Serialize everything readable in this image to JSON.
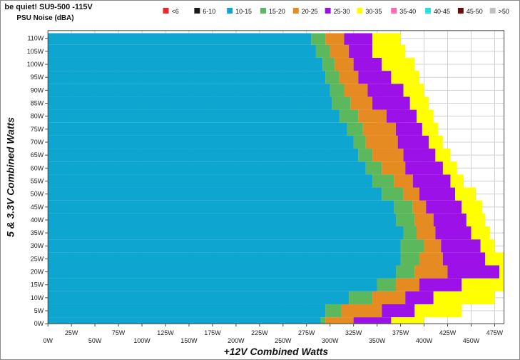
{
  "chart_data": {
    "type": "heatmap",
    "title": "be quiet! SU9-500 -115V",
    "subtitle": "PSU Noise (dBA)",
    "xlabel": "+12V Combined Watts",
    "ylabel": "5 & 3.3V Combined Watts",
    "xlim": [
      0,
      485
    ],
    "ylim": [
      0,
      113
    ],
    "x_tick_labels_upper": [
      "25W",
      "75W",
      "125W",
      "175W",
      "225W",
      "275W",
      "325W",
      "375W",
      "425W",
      "475W"
    ],
    "x_tick_labels_lower": [
      "0W",
      "50W",
      "100W",
      "150W",
      "200W",
      "250W",
      "300W",
      "350W",
      "400W",
      "450W"
    ],
    "y_tick_labels": [
      "0W",
      "5W",
      "10W",
      "15W",
      "20W",
      "25W",
      "30W",
      "35W",
      "40W",
      "45W",
      "50W",
      "55W",
      "60W",
      "65W",
      "70W",
      "75W",
      "80W",
      "85W",
      "90W",
      "95W",
      "100W",
      "105W",
      "110W"
    ],
    "legend": [
      {
        "label": "<6",
        "color": "#e8262b"
      },
      {
        "label": "6-10",
        "color": "#1a1a1a"
      },
      {
        "label": "10-15",
        "color": "#0fa5d1"
      },
      {
        "label": "15-20",
        "color": "#5cb85c"
      },
      {
        "label": "20-25",
        "color": "#e68a22"
      },
      {
        "label": "25-30",
        "color": "#9b11e8"
      },
      {
        "label": "30-35",
        "color": "#ffff00"
      },
      {
        "label": "35-40",
        "color": "#ff69b4"
      },
      {
        "label": "40-45",
        "color": "#22e3e3"
      },
      {
        "label": "45-50",
        "color": "#6b0a0a"
      },
      {
        "label": ">50",
        "color": "#c0c0c0"
      }
    ],
    "y_rows": [
      0,
      5,
      10,
      15,
      20,
      25,
      30,
      35,
      40,
      45,
      50,
      55,
      60,
      65,
      70,
      75,
      80,
      85,
      90,
      95,
      100,
      105,
      110
    ],
    "zone_boundaries_x": [
      {
        "y": 0,
        "b10_15": 290,
        "b15_20": 295,
        "b20_25": 325,
        "b25_30": 365,
        "b30_35": 400,
        "end": 485
      },
      {
        "y": 5,
        "b10_15": 295,
        "b15_20": 312,
        "b20_25": 355,
        "b25_30": 390,
        "b30_35": 440,
        "end": 480
      },
      {
        "y": 10,
        "b10_15": 320,
        "b15_20": 345,
        "b20_25": 380,
        "b25_30": 410,
        "b30_35": 475,
        "end": 485
      },
      {
        "y": 15,
        "b10_15": 350,
        "b15_20": 370,
        "b20_25": 395,
        "b25_30": 440,
        "b30_35": 485,
        "end": 485
      },
      {
        "y": 20,
        "b10_15": 370,
        "b15_20": 390,
        "b20_25": 425,
        "b25_30": 480,
        "b30_35": 485,
        "end": 485
      },
      {
        "y": 25,
        "b10_15": 375,
        "b15_20": 395,
        "b20_25": 420,
        "b25_30": 465,
        "b30_35": 485,
        "end": 485
      },
      {
        "y": 30,
        "b10_15": 375,
        "b15_20": 400,
        "b20_25": 418,
        "b25_30": 460,
        "b30_35": 475,
        "end": 475
      },
      {
        "y": 35,
        "b10_15": 378,
        "b15_20": 392,
        "b20_25": 412,
        "b25_30": 450,
        "b30_35": 470,
        "end": 470
      },
      {
        "y": 40,
        "b10_15": 370,
        "b15_20": 390,
        "b20_25": 410,
        "b25_30": 445,
        "b30_35": 465,
        "end": 465
      },
      {
        "y": 45,
        "b10_15": 368,
        "b15_20": 388,
        "b20_25": 402,
        "b25_30": 440,
        "b30_35": 462,
        "end": 462
      },
      {
        "y": 50,
        "b10_15": 355,
        "b15_20": 378,
        "b20_25": 395,
        "b25_30": 433,
        "b30_35": 455,
        "end": 455
      },
      {
        "y": 55,
        "b10_15": 345,
        "b15_20": 368,
        "b20_25": 388,
        "b25_30": 428,
        "b30_35": 442,
        "end": 442
      },
      {
        "y": 60,
        "b10_15": 338,
        "b15_20": 355,
        "b20_25": 380,
        "b25_30": 420,
        "b30_35": 435,
        "end": 435
      },
      {
        "y": 65,
        "b10_15": 330,
        "b15_20": 345,
        "b20_25": 378,
        "b25_30": 412,
        "b30_35": 428,
        "end": 428
      },
      {
        "y": 70,
        "b10_15": 325,
        "b15_20": 338,
        "b20_25": 372,
        "b25_30": 405,
        "b30_35": 420,
        "end": 420
      },
      {
        "y": 75,
        "b10_15": 318,
        "b15_20": 335,
        "b20_25": 370,
        "b25_30": 398,
        "b30_35": 415,
        "end": 415
      },
      {
        "y": 80,
        "b10_15": 310,
        "b15_20": 330,
        "b20_25": 360,
        "b25_30": 392,
        "b30_35": 410,
        "end": 410
      },
      {
        "y": 85,
        "b10_15": 302,
        "b15_20": 322,
        "b20_25": 345,
        "b25_30": 385,
        "b30_35": 405,
        "end": 405
      },
      {
        "y": 90,
        "b10_15": 300,
        "b15_20": 315,
        "b20_25": 340,
        "b25_30": 378,
        "b30_35": 400,
        "end": 400
      },
      {
        "y": 95,
        "b10_15": 295,
        "b15_20": 310,
        "b20_25": 330,
        "b25_30": 365,
        "b30_35": 395,
        "end": 395
      },
      {
        "y": 100,
        "b10_15": 292,
        "b15_20": 305,
        "b20_25": 325,
        "b25_30": 355,
        "b30_35": 390,
        "end": 390
      },
      {
        "y": 105,
        "b10_15": 285,
        "b15_20": 300,
        "b20_25": 320,
        "b25_30": 345,
        "b30_35": 380,
        "end": 380
      },
      {
        "y": 110,
        "b10_15": 280,
        "b15_20": 295,
        "b20_25": 315,
        "b25_30": 345,
        "b30_35": 375,
        "end": 375
      }
    ]
  }
}
